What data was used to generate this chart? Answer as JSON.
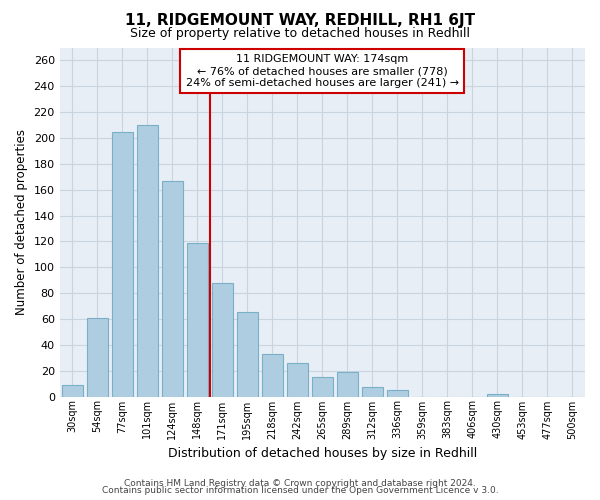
{
  "title": "11, RIDGEMOUNT WAY, REDHILL, RH1 6JT",
  "subtitle": "Size of property relative to detached houses in Redhill",
  "xlabel": "Distribution of detached houses by size in Redhill",
  "ylabel": "Number of detached properties",
  "footer_line1": "Contains HM Land Registry data © Crown copyright and database right 2024.",
  "footer_line2": "Contains public sector information licensed under the Open Government Licence v 3.0.",
  "bin_labels": [
    "30sqm",
    "54sqm",
    "77sqm",
    "101sqm",
    "124sqm",
    "148sqm",
    "171sqm",
    "195sqm",
    "218sqm",
    "242sqm",
    "265sqm",
    "289sqm",
    "312sqm",
    "336sqm",
    "359sqm",
    "383sqm",
    "406sqm",
    "430sqm",
    "453sqm",
    "477sqm",
    "500sqm"
  ],
  "bar_values": [
    9,
    61,
    205,
    210,
    167,
    119,
    88,
    65,
    33,
    26,
    15,
    19,
    7,
    5,
    0,
    0,
    0,
    2,
    0,
    0,
    0
  ],
  "bar_color": "#aecde1",
  "bar_edge_color": "#7aafc8",
  "highlight_line_index": 6,
  "annotation_line1": "11 RIDGEMOUNT WAY: 174sqm",
  "annotation_line2": "← 76% of detached houses are smaller (778)",
  "annotation_line3": "24% of semi-detached houses are larger (241) →",
  "red_color": "#cc0000",
  "ylim": [
    0,
    270
  ],
  "yticks": [
    0,
    20,
    40,
    60,
    80,
    100,
    120,
    140,
    160,
    180,
    200,
    220,
    240,
    260
  ],
  "plot_bg_color": "#e8eef5",
  "background_color": "#ffffff",
  "grid_color": "#c8d4e0",
  "footer_color": "#444444"
}
